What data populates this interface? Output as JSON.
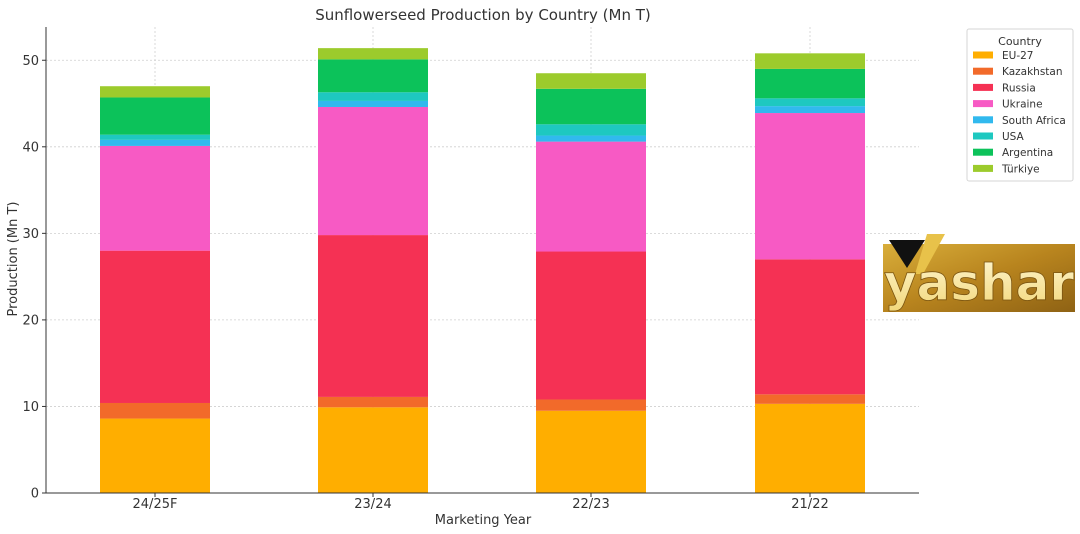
{
  "chart_data": {
    "type": "bar",
    "stacked": true,
    "title": "Sunflowerseed Production by Country (Mn T)",
    "xlabel": "Marketing Year",
    "ylabel": "Production (Mn T)",
    "ylim": [
      0,
      54
    ],
    "yticks": [
      0,
      10,
      20,
      30,
      40,
      50
    ],
    "grid": true,
    "categories": [
      "24/25F",
      "23/24",
      "22/23",
      "21/22"
    ],
    "legend": {
      "title": "Country",
      "position": "top-right"
    },
    "series": [
      {
        "name": "EU-27",
        "color": "#FFAE00",
        "values": [
          8.6,
          9.9,
          9.5,
          10.3
        ]
      },
      {
        "name": "Kazakhstan",
        "color": "#F26A2A",
        "values": [
          1.8,
          1.2,
          1.3,
          1.1
        ]
      },
      {
        "name": "Russia",
        "color": "#F53154",
        "values": [
          17.6,
          18.7,
          17.1,
          15.6
        ]
      },
      {
        "name": "Ukraine",
        "color": "#F75AC4",
        "values": [
          12.1,
          14.8,
          12.7,
          16.9
        ]
      },
      {
        "name": "South Africa",
        "color": "#31B9EE",
        "values": [
          0.7,
          0.7,
          0.7,
          0.8
        ]
      },
      {
        "name": "USA",
        "color": "#1EC8C0",
        "values": [
          0.6,
          1.0,
          1.3,
          0.9
        ]
      },
      {
        "name": "Argentina",
        "color": "#0CC25A",
        "values": [
          4.3,
          3.8,
          4.1,
          3.4
        ]
      },
      {
        "name": "Türkiye",
        "color": "#9CCB2C",
        "values": [
          1.3,
          1.3,
          1.8,
          1.8
        ]
      }
    ]
  },
  "logo": {
    "text": "yashar"
  }
}
